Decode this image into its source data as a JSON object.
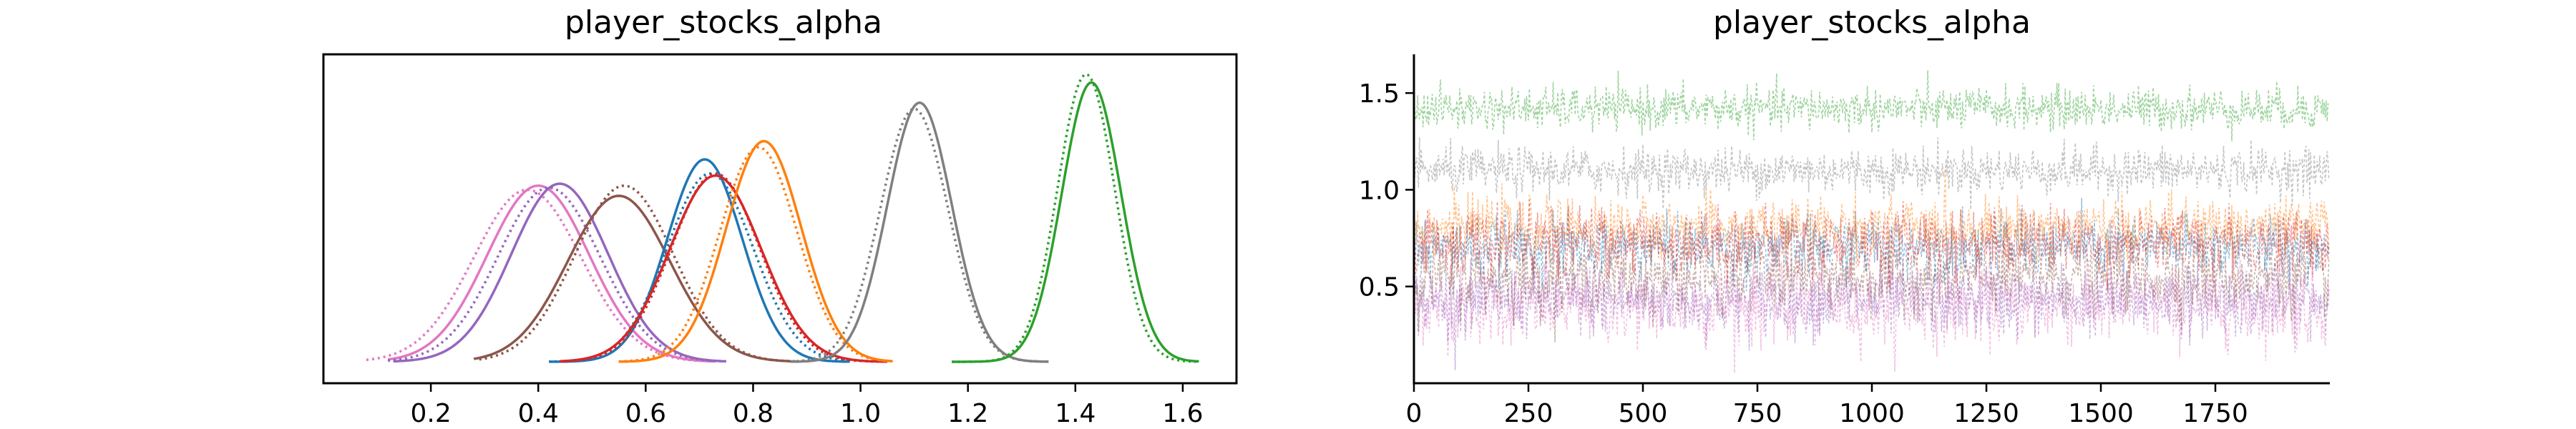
{
  "chart_data": [
    {
      "type": "line",
      "title": "player_stocks_alpha",
      "xlabel": "",
      "ylabel": "",
      "xlim": [
        0.0,
        1.7
      ],
      "xticks": [
        0.2,
        0.4,
        0.6,
        0.8,
        1.0,
        1.2,
        1.4,
        1.6
      ],
      "tick_labels": [
        "0.2",
        "0.4",
        "0.6",
        "0.8",
        "1.0",
        "1.2",
        "1.4",
        "1.6"
      ],
      "y_ticks_shown": false,
      "grid": false,
      "series": [
        {
          "color": "#e377c2",
          "mean": 0.4,
          "sd": 0.095,
          "range": [
            0.12,
            0.73
          ],
          "peak": 0.87,
          "style": "solid"
        },
        {
          "color": "#e377c2",
          "mean": 0.38,
          "sd": 0.1,
          "range": [
            0.08,
            0.72
          ],
          "peak": 0.85,
          "style": "dotted"
        },
        {
          "color": "#9467bd",
          "mean": 0.44,
          "sd": 0.09,
          "range": [
            0.13,
            0.75
          ],
          "peak": 0.88,
          "style": "solid"
        },
        {
          "color": "#9467bd",
          "mean": 0.42,
          "sd": 0.095,
          "range": [
            0.12,
            0.74
          ],
          "peak": 0.86,
          "style": "dotted"
        },
        {
          "color": "#8c564b",
          "mean": 0.55,
          "sd": 0.095,
          "range": [
            0.28,
            0.87
          ],
          "peak": 0.82,
          "style": "solid"
        },
        {
          "color": "#8c564b",
          "mean": 0.56,
          "sd": 0.092,
          "range": [
            0.29,
            0.88
          ],
          "peak": 0.87,
          "style": "dotted"
        },
        {
          "color": "#1f77b4",
          "mean": 0.71,
          "sd": 0.07,
          "range": [
            0.42,
            0.98
          ],
          "peak": 1.0,
          "style": "solid"
        },
        {
          "color": "#1f77b4",
          "mean": 0.72,
          "sd": 0.08,
          "range": [
            0.42,
            0.98
          ],
          "peak": 0.93,
          "style": "dotted"
        },
        {
          "color": "#d62728",
          "mean": 0.73,
          "sd": 0.085,
          "range": [
            0.44,
            1.05
          ],
          "peak": 0.92,
          "style": "solid"
        },
        {
          "color": "#d62728",
          "mean": 0.73,
          "sd": 0.082,
          "range": [
            0.44,
            1.05
          ],
          "peak": 0.93,
          "style": "dotted"
        },
        {
          "color": "#ff7f0e",
          "mean": 0.82,
          "sd": 0.07,
          "range": [
            0.55,
            1.06
          ],
          "peak": 1.09,
          "style": "solid"
        },
        {
          "color": "#ff7f0e",
          "mean": 0.81,
          "sd": 0.072,
          "range": [
            0.55,
            1.06
          ],
          "peak": 1.06,
          "style": "dotted"
        },
        {
          "color": "#7f7f7f",
          "mean": 1.11,
          "sd": 0.06,
          "range": [
            0.87,
            1.35
          ],
          "peak": 1.28,
          "style": "solid"
        },
        {
          "color": "#7f7f7f",
          "mean": 1.1,
          "sd": 0.063,
          "range": [
            0.87,
            1.35
          ],
          "peak": 1.25,
          "style": "dotted"
        },
        {
          "color": "#2ca02c",
          "mean": 1.43,
          "sd": 0.055,
          "range": [
            1.17,
            1.63
          ],
          "peak": 1.38,
          "style": "solid"
        },
        {
          "color": "#2ca02c",
          "mean": 1.42,
          "sd": 0.053,
          "range": [
            1.17,
            1.63
          ],
          "peak": 1.42,
          "style": "dotted"
        }
      ]
    },
    {
      "type": "line",
      "title": "player_stocks_alpha",
      "xlabel": "",
      "ylabel": "",
      "xlim": [
        0,
        2000
      ],
      "ylim": [
        0.0,
        1.7
      ],
      "xticks": [
        0,
        250,
        500,
        750,
        1000,
        1250,
        1500,
        1750
      ],
      "xtick_labels": [
        "0",
        "250",
        "500",
        "750",
        "1000",
        "1250",
        "1500",
        "1750"
      ],
      "yticks": [
        0.5,
        1.0,
        1.5
      ],
      "ytick_labels": [
        "0.5",
        "1.0",
        "1.5"
      ],
      "grid": false,
      "n_draws": 2000,
      "series": [
        {
          "color": "#e377c2",
          "mean": 0.4,
          "sd": 0.1
        },
        {
          "color": "#9467bd",
          "mean": 0.43,
          "sd": 0.09
        },
        {
          "color": "#8c564b",
          "mean": 0.55,
          "sd": 0.09
        },
        {
          "color": "#7f7f7f",
          "mean": 1.1,
          "sd": 0.06
        },
        {
          "color": "#2ca02c",
          "mean": 1.42,
          "sd": 0.055
        },
        {
          "color": "#1f77b4",
          "mean": 0.71,
          "sd": 0.075
        },
        {
          "color": "#ff7f0e",
          "mean": 0.81,
          "sd": 0.07
        },
        {
          "color": "#d62728",
          "mean": 0.73,
          "sd": 0.085
        }
      ]
    }
  ]
}
